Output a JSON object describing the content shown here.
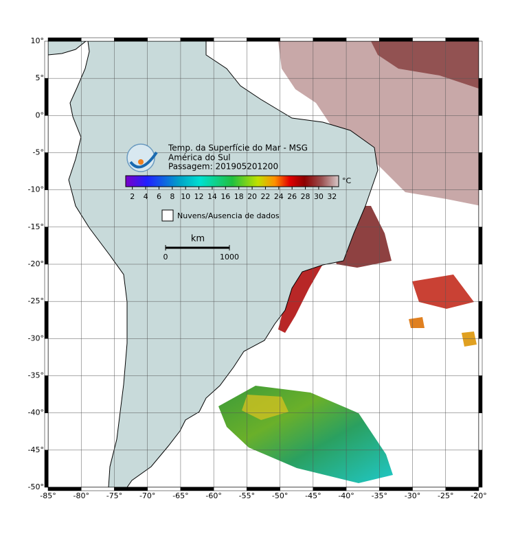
{
  "map": {
    "title_lines": [
      "Temp. da Superfície do Mar - MSG",
      "América do Sul",
      "Passagem: 201905201200"
    ],
    "colorbar": {
      "range": [
        1,
        33
      ],
      "ticks": [
        2,
        4,
        6,
        8,
        10,
        12,
        14,
        16,
        18,
        20,
        22,
        24,
        26,
        28,
        30,
        32
      ],
      "unit": "°C"
    },
    "legend": "Nuvens/Ausencia de dados",
    "scale_bar": {
      "unit": "km",
      "ticks": [
        0,
        1000
      ]
    },
    "lonlim": [
      -85,
      -20
    ],
    "latlim": [
      -50,
      10
    ],
    "lonticks": [
      {
        "value": -85,
        "label": "-85°"
      },
      {
        "value": -80,
        "label": "-80°"
      },
      {
        "value": -75,
        "label": "-75°"
      },
      {
        "value": -70,
        "label": "-70°"
      },
      {
        "value": -65,
        "label": "-65°"
      },
      {
        "value": -60,
        "label": "-60°"
      },
      {
        "value": -55,
        "label": "-55°"
      },
      {
        "value": -50,
        "label": "-50°"
      },
      {
        "value": -45,
        "label": "-45°"
      },
      {
        "value": -40,
        "label": "-40°"
      },
      {
        "value": -35,
        "label": "-35°"
      },
      {
        "value": -30,
        "label": "-30°"
      },
      {
        "value": -25,
        "label": "-25°"
      },
      {
        "value": -20,
        "label": "-20°"
      }
    ],
    "latticks": [
      {
        "value": 10,
        "label": "10°"
      },
      {
        "value": 5,
        "label": "5°"
      },
      {
        "value": 0,
        "label": "0°"
      },
      {
        "value": -5,
        "label": "-5°"
      },
      {
        "value": -10,
        "label": "-10°"
      },
      {
        "value": -15,
        "label": "-15°"
      },
      {
        "value": -20,
        "label": "-20°"
      },
      {
        "value": -25,
        "label": "-25°"
      },
      {
        "value": -30,
        "label": "-30°"
      },
      {
        "value": -35,
        "label": "-35°"
      },
      {
        "value": -40,
        "label": "-40°"
      },
      {
        "value": -45,
        "label": "-45°"
      },
      {
        "value": -50,
        "label": "-50°"
      }
    ]
  }
}
